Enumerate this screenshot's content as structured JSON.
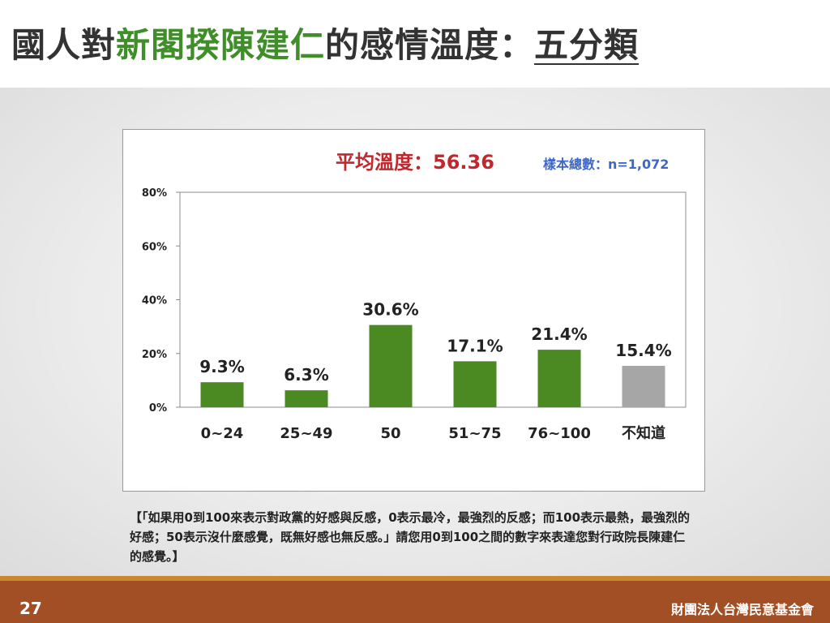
{
  "title": {
    "part1": "國人對",
    "part2": "新閣揆陳建仁",
    "part3": "的感情溫度：",
    "part4": "五分類"
  },
  "chart_data": {
    "type": "bar",
    "title": "平均溫度：56.36",
    "subtitle": "樣本總數：n=1,072",
    "categories": [
      "0~24",
      "25~49",
      "50",
      "51~75",
      "76~100",
      "不知道"
    ],
    "values": [
      9.3,
      6.3,
      30.6,
      17.1,
      21.4,
      15.4
    ],
    "data_labels": [
      "9.3%",
      "6.3%",
      "30.6%",
      "17.1%",
      "21.4%",
      "15.4%"
    ],
    "y_ticks": [
      "0%",
      "20%",
      "40%",
      "60%",
      "80%"
    ],
    "ylim": [
      0,
      80
    ],
    "bar_colors": [
      "#4b8a23",
      "#4b8a23",
      "#4b8a23",
      "#4b8a23",
      "#4b8a23",
      "#a6a6a6"
    ],
    "grid": false,
    "legend": "none"
  },
  "question_note": "【「如果用0到100來表示對政黨的好感與反感，0表示最冷，最強烈的反感；而100表示最熱，最強烈的好感；50表示沒什麼感覺，既無好感也無反感。」請您用0到100之間的數字來表達您對行政院長陳建仁的感覺。】",
  "footer": {
    "page_number": "27",
    "organization": "財團法人台灣民意基金會"
  }
}
